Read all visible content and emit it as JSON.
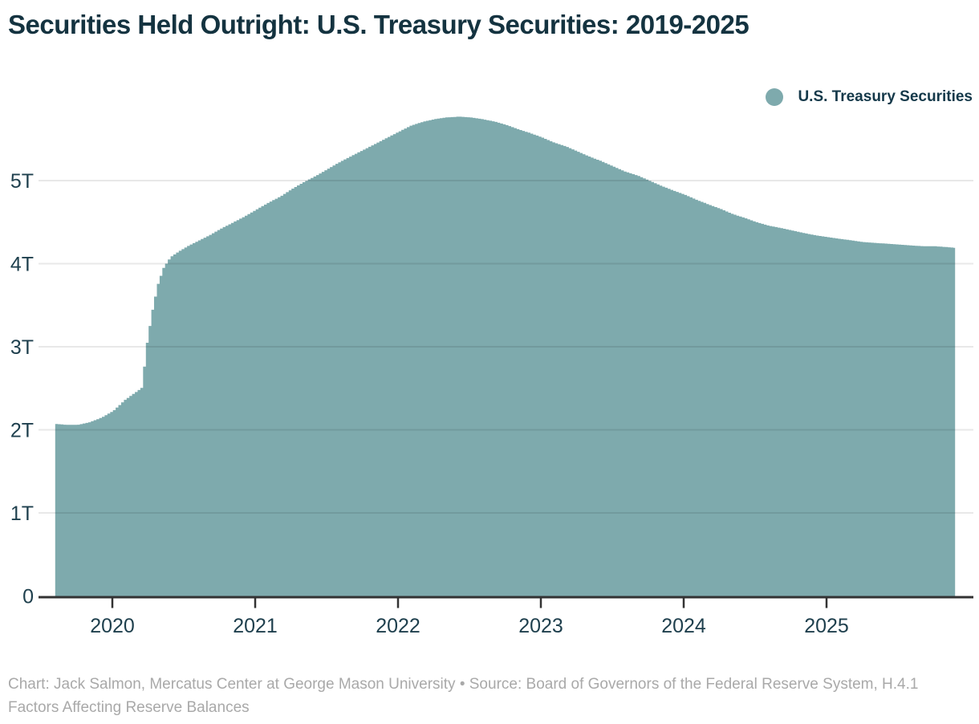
{
  "title": "Securities Held Outright: U.S. Treasury Securities: 2019-2025",
  "legend": {
    "label": "U.S. Treasury Securities",
    "marker_color": "#7EAAAD"
  },
  "footer_credit": "Chart: Jack Salmon, Mercatus Center at George Mason University • Source: Board of Governors of the Federal Reserve System, H.4.1 Factors Affecting Reserve Balances",
  "colors": {
    "area_fill": "#7EAAAD",
    "title_text": "#143340",
    "axis_text": "#1E3F4D",
    "axis_line": "#333333",
    "tick_mark": "#333333",
    "gridline": "rgba(0,0,0,0.09)",
    "footer_text": "#A9A9A9",
    "background": "#FFFFFF"
  },
  "chart_data": {
    "type": "area",
    "title": "Securities Held Outright: U.S. Treasury Securities: 2019-2025",
    "xlabel": "",
    "ylabel": "",
    "unit": "USD trillions",
    "grid": "horizontal",
    "legend_position": "top-right",
    "x_range": [
      2019.6,
      2025.9
    ],
    "y_range": [
      0,
      5.9
    ],
    "x_ticks": [
      2020,
      2021,
      2022,
      2023,
      2024,
      2025
    ],
    "y_ticks": [
      {
        "value": 0,
        "label": "0"
      },
      {
        "value": 1,
        "label": "1T"
      },
      {
        "value": 2,
        "label": "2T"
      },
      {
        "value": 3,
        "label": "3T"
      },
      {
        "value": 4,
        "label": "4T"
      },
      {
        "value": 5,
        "label": "5T"
      }
    ],
    "series": [
      {
        "name": "U.S. Treasury Securities",
        "color": "#7EAAAD",
        "points": [
          [
            2019.6,
            2.07
          ],
          [
            2019.67,
            2.06
          ],
          [
            2019.75,
            2.06
          ],
          [
            2019.83,
            2.09
          ],
          [
            2019.92,
            2.15
          ],
          [
            2020.0,
            2.23
          ],
          [
            2020.08,
            2.36
          ],
          [
            2020.17,
            2.47
          ],
          [
            2020.2,
            2.51
          ],
          [
            2020.23,
            3.0
          ],
          [
            2020.27,
            3.42
          ],
          [
            2020.31,
            3.75
          ],
          [
            2020.35,
            3.95
          ],
          [
            2020.4,
            4.08
          ],
          [
            2020.46,
            4.15
          ],
          [
            2020.53,
            4.22
          ],
          [
            2020.6,
            4.28
          ],
          [
            2020.67,
            4.34
          ],
          [
            2020.75,
            4.42
          ],
          [
            2020.83,
            4.49
          ],
          [
            2020.92,
            4.57
          ],
          [
            2021.0,
            4.65
          ],
          [
            2021.08,
            4.73
          ],
          [
            2021.17,
            4.81
          ],
          [
            2021.25,
            4.9
          ],
          [
            2021.33,
            4.98
          ],
          [
            2021.42,
            5.06
          ],
          [
            2021.5,
            5.14
          ],
          [
            2021.58,
            5.22
          ],
          [
            2021.67,
            5.3
          ],
          [
            2021.75,
            5.37
          ],
          [
            2021.83,
            5.44
          ],
          [
            2021.92,
            5.52
          ],
          [
            2022.0,
            5.59
          ],
          [
            2022.08,
            5.66
          ],
          [
            2022.17,
            5.71
          ],
          [
            2022.25,
            5.74
          ],
          [
            2022.33,
            5.76
          ],
          [
            2022.42,
            5.77
          ],
          [
            2022.5,
            5.76
          ],
          [
            2022.58,
            5.74
          ],
          [
            2022.67,
            5.71
          ],
          [
            2022.75,
            5.67
          ],
          [
            2022.83,
            5.62
          ],
          [
            2022.92,
            5.57
          ],
          [
            2023.0,
            5.52
          ],
          [
            2023.08,
            5.46
          ],
          [
            2023.17,
            5.41
          ],
          [
            2023.25,
            5.35
          ],
          [
            2023.33,
            5.29
          ],
          [
            2023.42,
            5.23
          ],
          [
            2023.5,
            5.17
          ],
          [
            2023.58,
            5.11
          ],
          [
            2023.67,
            5.06
          ],
          [
            2023.75,
            5.0
          ],
          [
            2023.83,
            4.94
          ],
          [
            2023.92,
            4.88
          ],
          [
            2024.0,
            4.83
          ],
          [
            2024.08,
            4.77
          ],
          [
            2024.17,
            4.71
          ],
          [
            2024.25,
            4.66
          ],
          [
            2024.33,
            4.6
          ],
          [
            2024.42,
            4.55
          ],
          [
            2024.5,
            4.5
          ],
          [
            2024.58,
            4.46
          ],
          [
            2024.67,
            4.43
          ],
          [
            2024.75,
            4.4
          ],
          [
            2024.83,
            4.37
          ],
          [
            2024.92,
            4.34
          ],
          [
            2025.0,
            4.32
          ],
          [
            2025.08,
            4.3
          ],
          [
            2025.17,
            4.28
          ],
          [
            2025.25,
            4.26
          ],
          [
            2025.33,
            4.25
          ],
          [
            2025.42,
            4.24
          ],
          [
            2025.5,
            4.23
          ],
          [
            2025.58,
            4.22
          ],
          [
            2025.67,
            4.21
          ],
          [
            2025.75,
            4.21
          ],
          [
            2025.83,
            4.2
          ],
          [
            2025.9,
            4.19
          ]
        ]
      }
    ]
  }
}
